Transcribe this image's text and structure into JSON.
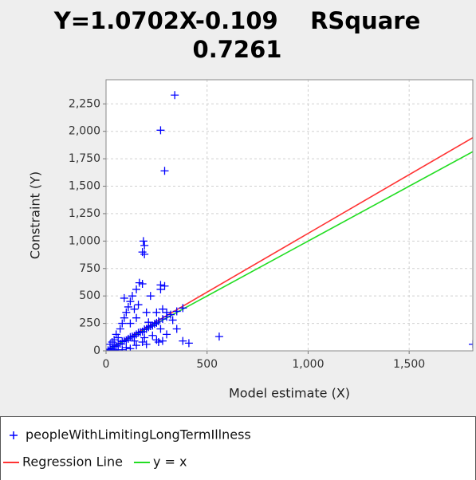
{
  "chart_data": {
    "type": "scatter",
    "title": "Y=1.0702X-0.109    RSquare 0.7261",
    "x_label": "Model estimate (X)",
    "y_label": "Constraint (Y)",
    "xlim": [
      0,
      1815
    ],
    "ylim": [
      0,
      2470
    ],
    "xticks": [
      0,
      500,
      {
        "value": 1000,
        "label": "1,000"
      },
      {
        "value": 1500,
        "label": "1,500"
      }
    ],
    "yticks": [
      0,
      250,
      500,
      750,
      {
        "value": 1000,
        "label": "1,000"
      },
      {
        "value": 1250,
        "label": "1,250"
      },
      {
        "value": 1500,
        "label": "1,500"
      },
      {
        "value": 1750,
        "label": "1,750"
      },
      {
        "value": 2000,
        "label": "2,000"
      },
      {
        "value": 2250,
        "label": "2,250"
      }
    ],
    "grid": true,
    "series": [
      {
        "name": "peopleWithLimitingLongTermIllness",
        "color": "#0000ff",
        "kind": "scatter",
        "x": [
          10,
          20,
          30,
          40,
          50,
          60,
          70,
          80,
          90,
          100,
          110,
          120,
          130,
          140,
          150,
          160,
          170,
          180,
          190,
          200,
          210,
          220,
          230,
          240,
          250,
          260,
          280,
          300,
          320,
          350,
          380,
          50,
          70,
          80,
          90,
          100,
          110,
          120,
          90,
          130,
          140,
          150,
          120,
          60,
          40,
          30,
          20,
          100,
          150,
          200,
          250,
          300,
          350,
          180,
          120,
          60,
          40,
          230,
          270,
          330,
          160,
          200,
          220,
          150,
          210,
          250,
          280,
          300,
          80,
          140,
          190,
          340,
          270,
          290,
          185,
          190,
          180,
          190,
          165,
          180,
          270,
          290,
          270,
          560,
          380,
          410,
          280,
          260,
          1815
        ],
        "values": [
          5,
          15,
          25,
          40,
          45,
          60,
          65,
          85,
          90,
          95,
          110,
          125,
          130,
          135,
          150,
          165,
          170,
          175,
          195,
          200,
          215,
          225,
          230,
          245,
          255,
          270,
          290,
          310,
          330,
          360,
          390,
          150,
          200,
          250,
          300,
          350,
          400,
          450,
          480,
          500,
          380,
          300,
          250,
          120,
          100,
          80,
          60,
          30,
          50,
          60,
          100,
          150,
          200,
          80,
          20,
          10,
          5,
          140,
          200,
          280,
          420,
          350,
          500,
          560,
          260,
          350,
          380,
          350,
          10,
          90,
          120,
          2330,
          2010,
          1640,
          1000,
          960,
          900,
          880,
          620,
          610,
          600,
          590,
          560,
          130,
          90,
          70,
          90,
          80,
          60
        ]
      },
      {
        "name": "Regression Line",
        "color": "#ff3333",
        "kind": "line",
        "x": [
          0,
          1815
        ],
        "values": [
          -0.109,
          1942.3
        ]
      },
      {
        "name": "y = x",
        "color": "#22dd22",
        "kind": "line",
        "x": [
          0,
          1815
        ],
        "values": [
          0,
          1815
        ]
      }
    ]
  }
}
